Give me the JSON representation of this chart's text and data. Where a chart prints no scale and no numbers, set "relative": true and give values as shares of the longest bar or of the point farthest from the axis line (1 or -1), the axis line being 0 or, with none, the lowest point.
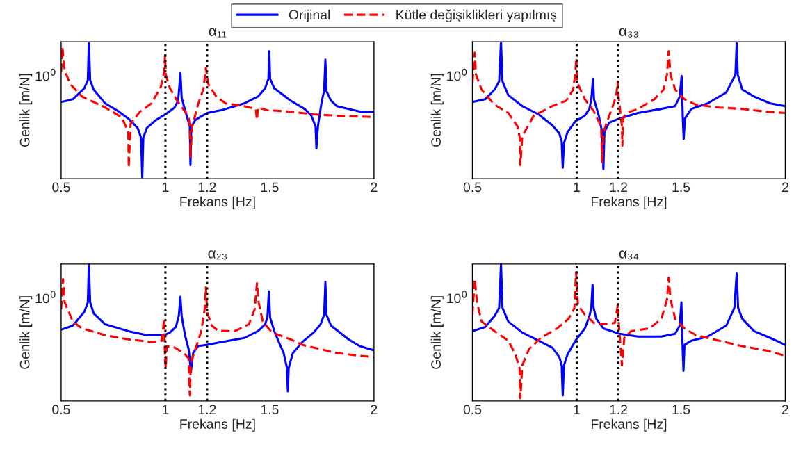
{
  "chart_data": [
    {
      "type": "line",
      "title": "α₁₁",
      "xlabel": "Frekans [Hz]",
      "ylabel": "Genlik [m/N]",
      "relative": true,
      "legend": "top",
      "xlim": [
        0.5,
        2
      ],
      "xticks": [
        0.5,
        1,
        1.2,
        1.5,
        2
      ],
      "annotations": [
        "10$^{0}$"
      ],
      "ref_lines": [
        {
          "axis": "x",
          "value": 1,
          "color": "#000000",
          "line_style": "dotted"
        },
        {
          "axis": "x",
          "value": 1.2,
          "color": "#000000",
          "line_style": "dotted"
        }
      ],
      "series": [
        {
          "name": "Orijinal",
          "color": "#0000ff",
          "line_style": "solid",
          "x": [
            0.5,
            0.556,
            0.611,
            0.628,
            0.633,
            0.639,
            0.656,
            0.711,
            0.767,
            0.822,
            0.867,
            0.883,
            0.889,
            0.894,
            0.911,
            0.956,
            1.0,
            1.044,
            1.061,
            1.072,
            1.078,
            1.1,
            1.117,
            1.12,
            1.124,
            1.144,
            1.2,
            1.267,
            1.378,
            1.444,
            1.478,
            1.494,
            1.498,
            1.502,
            1.522,
            1.6,
            1.667,
            1.7,
            1.72,
            1.724,
            1.731,
            1.75,
            1.761,
            1.767,
            1.772,
            1.794,
            1.822,
            1.933,
            2.0
          ],
          "values": [
            0.56,
            0.58,
            0.66,
            0.72,
            1.0,
            0.72,
            0.65,
            0.55,
            0.5,
            0.44,
            0.37,
            0.3,
            0.01,
            0.3,
            0.37,
            0.43,
            0.47,
            0.52,
            0.57,
            0.77,
            0.59,
            0.47,
            0.38,
            0.1,
            0.38,
            0.43,
            0.48,
            0.5,
            0.55,
            0.6,
            0.66,
            0.73,
            0.93,
            0.73,
            0.66,
            0.57,
            0.51,
            0.46,
            0.38,
            0.22,
            0.38,
            0.57,
            0.64,
            0.87,
            0.64,
            0.57,
            0.53,
            0.49,
            0.49
          ]
        },
        {
          "name": "Kütle değişiklikleri yapılmış",
          "color": "#ff0000",
          "line_style": "dashed",
          "x": [
            0.5,
            0.506,
            0.517,
            0.544,
            0.6,
            0.711,
            0.789,
            0.811,
            0.822,
            0.824,
            0.833,
            0.878,
            0.933,
            0.978,
            0.994,
            0.998,
            1.002,
            1.022,
            1.056,
            1.089,
            1.111,
            1.117,
            1.12,
            1.128,
            1.156,
            1.183,
            1.194,
            1.206,
            1.244,
            1.289,
            1.378,
            1.433,
            1.439,
            1.444,
            1.489,
            1.6,
            1.711,
            1.822,
            2.0
          ],
          "values": [
            0.78,
            0.96,
            0.79,
            0.69,
            0.6,
            0.52,
            0.45,
            0.38,
            0.35,
            0.08,
            0.4,
            0.49,
            0.55,
            0.67,
            0.78,
            0.9,
            0.76,
            0.66,
            0.57,
            0.5,
            0.45,
            0.38,
            0.16,
            0.38,
            0.54,
            0.66,
            0.81,
            0.69,
            0.6,
            0.55,
            0.53,
            0.51,
            0.43,
            0.52,
            0.5,
            0.49,
            0.47,
            0.46,
            0.45
          ]
        }
      ]
    },
    {
      "type": "line",
      "title": "α₃₃",
      "xlabel": "Frekans [Hz]",
      "ylabel": "Genlik [m/N]",
      "relative": true,
      "xlim": [
        0.5,
        2
      ],
      "xticks": [
        0.5,
        1,
        1.2,
        1.5,
        2
      ],
      "annotations": [
        "10$^{0}$"
      ],
      "ref_lines": [
        {
          "axis": "x",
          "value": 1,
          "color": "#000000",
          "line_style": "dotted"
        },
        {
          "axis": "x",
          "value": 1.2,
          "color": "#000000",
          "line_style": "dotted"
        }
      ],
      "series": [
        {
          "color": "#0000ff",
          "line_style": "solid",
          "x": [
            0.5,
            0.561,
            0.606,
            0.628,
            0.637,
            0.644,
            0.672,
            0.739,
            0.817,
            0.883,
            0.917,
            0.928,
            0.933,
            0.939,
            0.956,
            0.994,
            1.039,
            1.061,
            1.07,
            1.078,
            1.083,
            1.106,
            1.122,
            1.128,
            1.133,
            1.156,
            1.206,
            1.294,
            1.406,
            1.472,
            1.494,
            1.503,
            1.509,
            1.513,
            1.519,
            1.55,
            1.628,
            1.717,
            1.761,
            1.767,
            1.772,
            1.794,
            1.85,
            1.928,
            2.0
          ],
          "values": [
            0.56,
            0.58,
            0.65,
            0.71,
            1.0,
            0.71,
            0.61,
            0.53,
            0.47,
            0.39,
            0.33,
            0.27,
            0.08,
            0.26,
            0.34,
            0.42,
            0.46,
            0.51,
            0.58,
            0.73,
            0.58,
            0.46,
            0.34,
            0.07,
            0.34,
            0.41,
            0.44,
            0.48,
            0.51,
            0.53,
            0.6,
            0.75,
            0.43,
            0.29,
            0.44,
            0.51,
            0.55,
            0.63,
            0.76,
            0.99,
            0.76,
            0.65,
            0.6,
            0.55,
            0.53
          ]
        },
        {
          "color": "#ff0000",
          "line_style": "dashed",
          "x": [
            0.5,
            0.511,
            0.517,
            0.544,
            0.606,
            0.672,
            0.717,
            0.728,
            0.73,
            0.739,
            0.794,
            0.883,
            0.95,
            0.983,
            0.994,
            0.998,
            1.003,
            1.039,
            1.083,
            1.117,
            1.122,
            1.128,
            1.161,
            1.189,
            1.197,
            1.2,
            1.217,
            1.219,
            1.222,
            1.239,
            1.294,
            1.372,
            1.417,
            1.433,
            1.441,
            1.45,
            1.472,
            1.517,
            1.572,
            1.683,
            1.794,
            1.906,
            2.0
          ],
          "values": [
            0.7,
            0.92,
            0.76,
            0.65,
            0.54,
            0.48,
            0.38,
            0.29,
            0.1,
            0.31,
            0.46,
            0.53,
            0.57,
            0.65,
            0.78,
            0.88,
            0.7,
            0.58,
            0.49,
            0.38,
            0.12,
            0.34,
            0.48,
            0.6,
            0.71,
            0.61,
            0.38,
            0.24,
            0.44,
            0.48,
            0.51,
            0.58,
            0.65,
            0.76,
            0.93,
            0.76,
            0.65,
            0.58,
            0.54,
            0.52,
            0.51,
            0.49,
            0.48
          ]
        }
      ]
    },
    {
      "type": "line",
      "title": "α₂₃",
      "xlabel": "Frekans [Hz]",
      "ylabel": "Genlik [m/N]",
      "relative": true,
      "xlim": [
        0.5,
        2
      ],
      "xticks": [
        0.5,
        1,
        1.2,
        1.5,
        2
      ],
      "annotations": [
        "10$^{0}$"
      ],
      "ref_lines": [
        {
          "axis": "x",
          "value": 1,
          "color": "#000000",
          "line_style": "dotted"
        },
        {
          "axis": "x",
          "value": 1.2,
          "color": "#000000",
          "line_style": "dotted"
        }
      ],
      "series": [
        {
          "color": "#0000ff",
          "line_style": "solid",
          "x": [
            0.5,
            0.556,
            0.611,
            0.628,
            0.633,
            0.639,
            0.656,
            0.711,
            0.822,
            0.911,
            0.994,
            1.022,
            1.05,
            1.064,
            1.072,
            1.078,
            1.094,
            1.111,
            1.117,
            1.122,
            1.133,
            1.156,
            1.2,
            1.267,
            1.378,
            1.444,
            1.478,
            1.489,
            1.496,
            1.502,
            1.522,
            1.544,
            1.567,
            1.583,
            1.587,
            1.591,
            1.611,
            1.656,
            1.711,
            1.744,
            1.761,
            1.767,
            1.772,
            1.794,
            1.878,
            1.933,
            2.0
          ],
          "values": [
            0.52,
            0.55,
            0.65,
            0.72,
            1.0,
            0.72,
            0.64,
            0.56,
            0.51,
            0.48,
            0.48,
            0.5,
            0.54,
            0.62,
            0.76,
            0.62,
            0.48,
            0.38,
            0.3,
            0.21,
            0.35,
            0.4,
            0.41,
            0.43,
            0.46,
            0.51,
            0.56,
            0.61,
            0.8,
            0.61,
            0.51,
            0.43,
            0.35,
            0.24,
            0.07,
            0.24,
            0.35,
            0.43,
            0.5,
            0.56,
            0.63,
            0.87,
            0.63,
            0.55,
            0.45,
            0.4,
            0.37
          ]
        },
        {
          "color": "#ff0000",
          "line_style": "dashed",
          "x": [
            0.5,
            0.509,
            0.517,
            0.556,
            0.6,
            0.711,
            0.822,
            0.933,
            0.983,
            0.994,
            0.998,
            1.002,
            1.006,
            1.044,
            1.089,
            1.111,
            1.117,
            1.122,
            1.144,
            1.172,
            1.189,
            1.194,
            1.2,
            1.222,
            1.256,
            1.333,
            1.4,
            1.428,
            1.439,
            1.447,
            1.467,
            1.511,
            1.6,
            1.656,
            1.711,
            1.822,
            1.933,
            2.0
          ],
          "values": [
            0.67,
            0.89,
            0.72,
            0.58,
            0.53,
            0.48,
            0.45,
            0.43,
            0.44,
            0.6,
            0.31,
            0.24,
            0.4,
            0.39,
            0.35,
            0.31,
            0.04,
            0.28,
            0.38,
            0.51,
            0.68,
            0.83,
            0.65,
            0.55,
            0.51,
            0.51,
            0.56,
            0.67,
            0.86,
            0.72,
            0.58,
            0.5,
            0.45,
            0.41,
            0.39,
            0.35,
            0.33,
            0.32
          ]
        }
      ]
    },
    {
      "type": "line",
      "title": "α₃₄",
      "xlabel": "Frekans [Hz]",
      "ylabel": "Genlik [m/N]",
      "relative": true,
      "xlim": [
        0.5,
        2
      ],
      "xticks": [
        0.5,
        1,
        1.2,
        1.5,
        2
      ],
      "annotations": [
        "10$^{0}$"
      ],
      "ref_lines": [
        {
          "axis": "x",
          "value": 1,
          "color": "#000000",
          "line_style": "dotted"
        },
        {
          "axis": "x",
          "value": 1.2,
          "color": "#000000",
          "line_style": "dotted"
        }
      ],
      "series": [
        {
          "color": "#0000ff",
          "line_style": "solid",
          "x": [
            0.5,
            0.561,
            0.606,
            0.628,
            0.637,
            0.644,
            0.672,
            0.739,
            0.817,
            0.883,
            0.917,
            0.928,
            0.933,
            0.939,
            0.956,
            0.994,
            1.039,
            1.061,
            1.07,
            1.076,
            1.081,
            1.094,
            1.128,
            1.206,
            1.294,
            1.406,
            1.472,
            1.494,
            1.502,
            1.508,
            1.512,
            1.517,
            1.55,
            1.628,
            1.717,
            1.756,
            1.767,
            1.774,
            1.794,
            1.85,
            1.928,
            2.0
          ],
          "values": [
            0.51,
            0.54,
            0.62,
            0.68,
            1.0,
            0.68,
            0.58,
            0.5,
            0.44,
            0.39,
            0.32,
            0.26,
            0.04,
            0.26,
            0.34,
            0.44,
            0.53,
            0.62,
            0.68,
            0.85,
            0.68,
            0.6,
            0.53,
            0.49,
            0.47,
            0.47,
            0.49,
            0.55,
            0.72,
            0.38,
            0.22,
            0.41,
            0.44,
            0.47,
            0.55,
            0.68,
            0.93,
            0.68,
            0.6,
            0.51,
            0.46,
            0.41
          ]
        },
        {
          "color": "#ff0000",
          "line_style": "dashed",
          "x": [
            0.5,
            0.511,
            0.522,
            0.544,
            0.606,
            0.672,
            0.706,
            0.726,
            0.73,
            0.739,
            0.772,
            0.828,
            0.906,
            0.961,
            0.989,
            0.997,
            1.006,
            1.039,
            1.083,
            1.128,
            1.183,
            1.197,
            1.2,
            1.211,
            1.217,
            1.228,
            1.261,
            1.35,
            1.406,
            1.433,
            1.441,
            1.45,
            1.472,
            1.517,
            1.572,
            1.683,
            1.794,
            1.906,
            2.0
          ],
          "values": [
            0.63,
            0.89,
            0.72,
            0.58,
            0.51,
            0.44,
            0.34,
            0.24,
            0.02,
            0.26,
            0.38,
            0.46,
            0.53,
            0.6,
            0.68,
            0.94,
            0.7,
            0.63,
            0.57,
            0.56,
            0.57,
            0.7,
            0.6,
            0.38,
            0.26,
            0.46,
            0.51,
            0.53,
            0.6,
            0.74,
            0.9,
            0.74,
            0.6,
            0.53,
            0.48,
            0.44,
            0.4,
            0.37,
            0.33
          ]
        }
      ]
    }
  ]
}
